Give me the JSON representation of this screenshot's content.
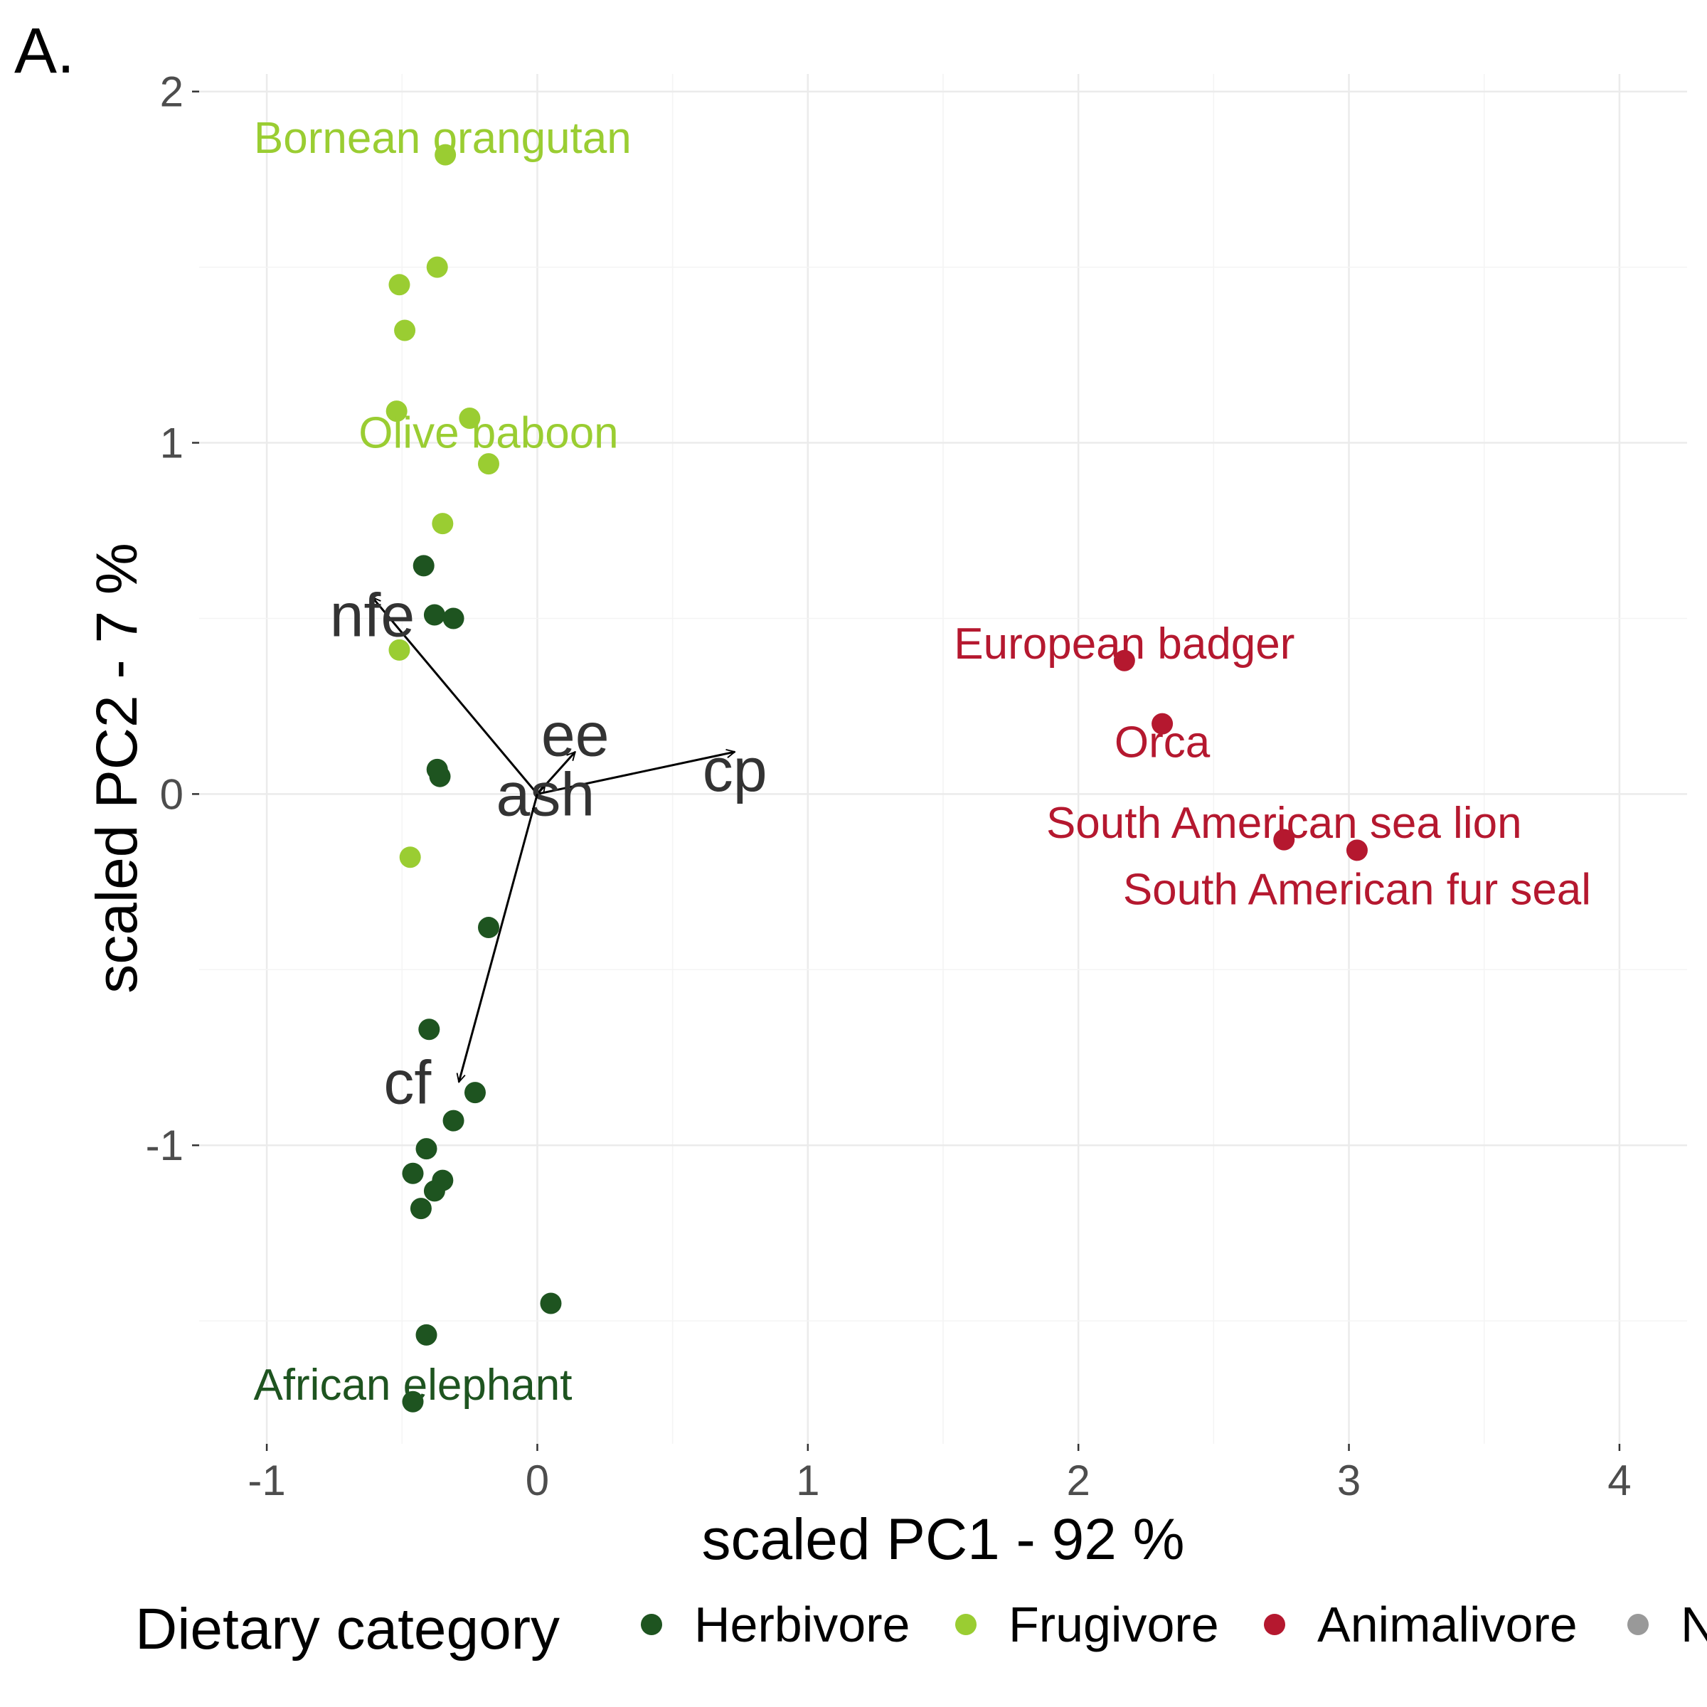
{
  "panel_label": "A.",
  "colors": {
    "Herbivore": "#1e5420",
    "Frugivore": "#9acd32",
    "Animalivore": "#b5182f",
    "N": "#999999"
  },
  "chart_data": {
    "type": "scatter",
    "subtype": "PCA biplot",
    "xlabel": "scaled PC1 - 92 %",
    "ylabel": "scaled PC2 - 7 %",
    "xlim": [
      -1.25,
      4.25
    ],
    "ylim": [
      -1.85,
      2.05
    ],
    "x_ticks": [
      -1,
      0,
      1,
      2,
      3,
      4
    ],
    "y_ticks": [
      -1,
      0,
      1,
      2
    ],
    "x_tick_labels": [
      "-1",
      "0",
      "1",
      "2",
      "3",
      "4"
    ],
    "y_tick_labels": [
      "-1",
      "0",
      "1",
      "2"
    ],
    "grid": true,
    "legend_position": "bottom",
    "series": [
      {
        "name": "Herbivore",
        "points": [
          {
            "x": -0.42,
            "y": 0.65
          },
          {
            "x": -0.38,
            "y": 0.51
          },
          {
            "x": -0.31,
            "y": 0.5
          },
          {
            "x": -0.37,
            "y": 0.07
          },
          {
            "x": -0.36,
            "y": 0.05
          },
          {
            "x": -0.18,
            "y": -0.38
          },
          {
            "x": -0.4,
            "y": -0.67
          },
          {
            "x": -0.23,
            "y": -0.85
          },
          {
            "x": -0.31,
            "y": -0.93
          },
          {
            "x": -0.41,
            "y": -1.01
          },
          {
            "x": -0.46,
            "y": -1.08
          },
          {
            "x": -0.35,
            "y": -1.1
          },
          {
            "x": -0.38,
            "y": -1.13
          },
          {
            "x": -0.43,
            "y": -1.18
          },
          {
            "x": 0.05,
            "y": -1.45
          },
          {
            "x": -0.41,
            "y": -1.54
          },
          {
            "x": -0.46,
            "y": -1.73
          }
        ]
      },
      {
        "name": "Frugivore",
        "points": [
          {
            "x": -0.34,
            "y": 1.82
          },
          {
            "x": -0.37,
            "y": 1.5
          },
          {
            "x": -0.51,
            "y": 1.45
          },
          {
            "x": -0.49,
            "y": 1.32
          },
          {
            "x": -0.52,
            "y": 1.09
          },
          {
            "x": -0.25,
            "y": 1.07
          },
          {
            "x": -0.18,
            "y": 0.94
          },
          {
            "x": -0.35,
            "y": 0.77
          },
          {
            "x": -0.51,
            "y": 0.41
          },
          {
            "x": -0.47,
            "y": -0.18
          }
        ]
      },
      {
        "name": "Animalivore",
        "points": [
          {
            "x": 2.17,
            "y": 0.38
          },
          {
            "x": 2.31,
            "y": 0.2
          },
          {
            "x": 2.76,
            "y": -0.13
          },
          {
            "x": 3.03,
            "y": -0.16
          }
        ]
      }
    ],
    "point_labels": [
      {
        "text": "Bornean orangutan",
        "series": "Frugivore",
        "x": -0.35,
        "y": 1.87
      },
      {
        "text": "Olive baboon",
        "series": "Frugivore",
        "x": -0.18,
        "y": 1.03
      },
      {
        "text": "African elephant",
        "series": "Herbivore",
        "x": -0.46,
        "y": -1.68
      },
      {
        "text": "European badger",
        "series": "Animalivore",
        "x": 2.17,
        "y": 0.43
      },
      {
        "text": "Orca",
        "series": "Animalivore",
        "x": 2.31,
        "y": 0.15
      },
      {
        "text": "South American sea lion",
        "series": "Animalivore",
        "x": 2.76,
        "y": -0.08
      },
      {
        "text": "South American fur seal",
        "series": "Animalivore",
        "x": 3.03,
        "y": -0.27
      }
    ],
    "loadings": [
      {
        "name": "nfe",
        "x": -0.61,
        "y": 0.56,
        "label_x": -0.61,
        "label_y": 0.51
      },
      {
        "name": "ee",
        "x": 0.14,
        "y": 0.12,
        "label_x": 0.14,
        "label_y": 0.17
      },
      {
        "name": "cp",
        "x": 0.73,
        "y": 0.12,
        "label_x": 0.73,
        "label_y": 0.07
      },
      {
        "name": "ash",
        "x": 0.03,
        "y": 0.03,
        "label_x": 0.03,
        "label_y": 0.0
      },
      {
        "name": "cf",
        "x": -0.29,
        "y": -0.82,
        "label_x": -0.48,
        "label_y": -0.82
      }
    ],
    "loading_origin": {
      "x": 0,
      "y": 0
    },
    "legend": {
      "title": "Dietary category",
      "items": [
        "Herbivore",
        "Frugivore",
        "Animalivore",
        "N"
      ]
    }
  }
}
